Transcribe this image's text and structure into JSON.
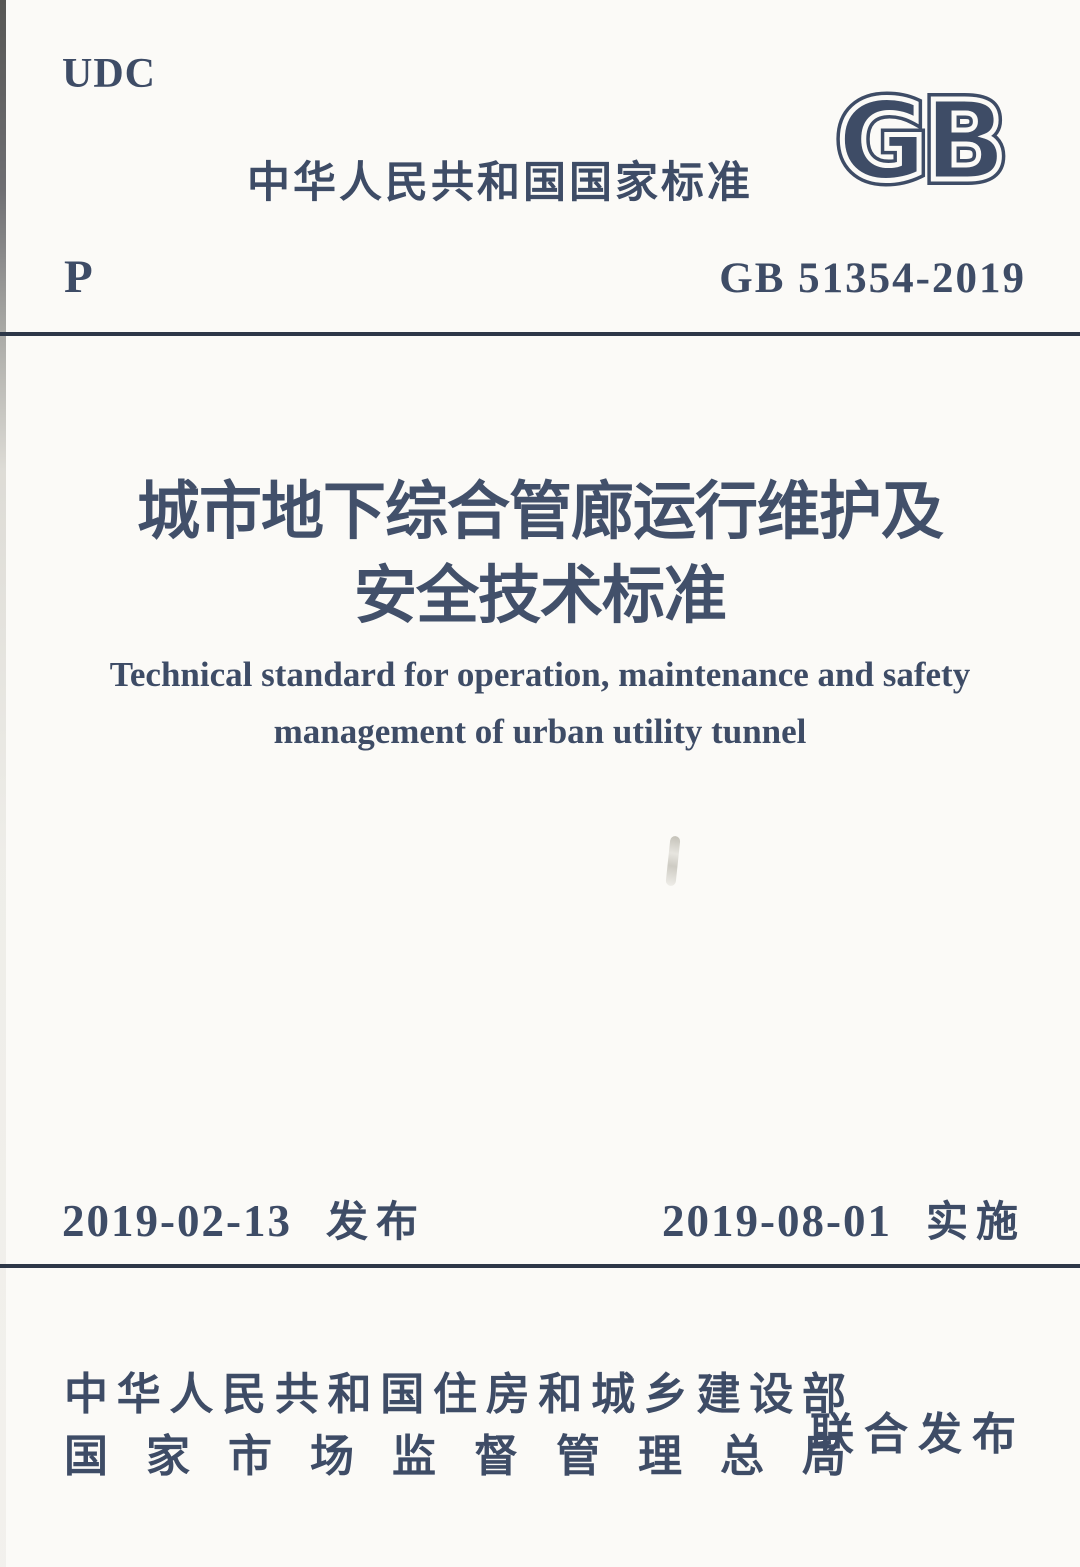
{
  "page": {
    "udc_label": "UDC",
    "classification_code": "P",
    "header_title": "中华人民共和国国家标准",
    "gb_logo_text": "GB",
    "standard_number": "GB 51354-2019",
    "title_cn_line1": "城市地下综合管廊运行维护及",
    "title_cn_line2": "安全技术标准",
    "title_en_line1": "Technical standard for operation, maintenance and safety",
    "title_en_line2": "management of urban utility tunnel",
    "issue_date": "2019-02-13",
    "issue_label": "发布",
    "implement_date": "2019-08-01",
    "implement_label": "实施",
    "publisher_line1": "中华人民共和国住房和城乡建设部",
    "publisher_line2": "国家市场监督管理总局",
    "joint_release_label": "联合发布",
    "colors": {
      "ink": "#3e4c66",
      "rule": "#2d3748",
      "background": "#fbfaf7"
    }
  }
}
